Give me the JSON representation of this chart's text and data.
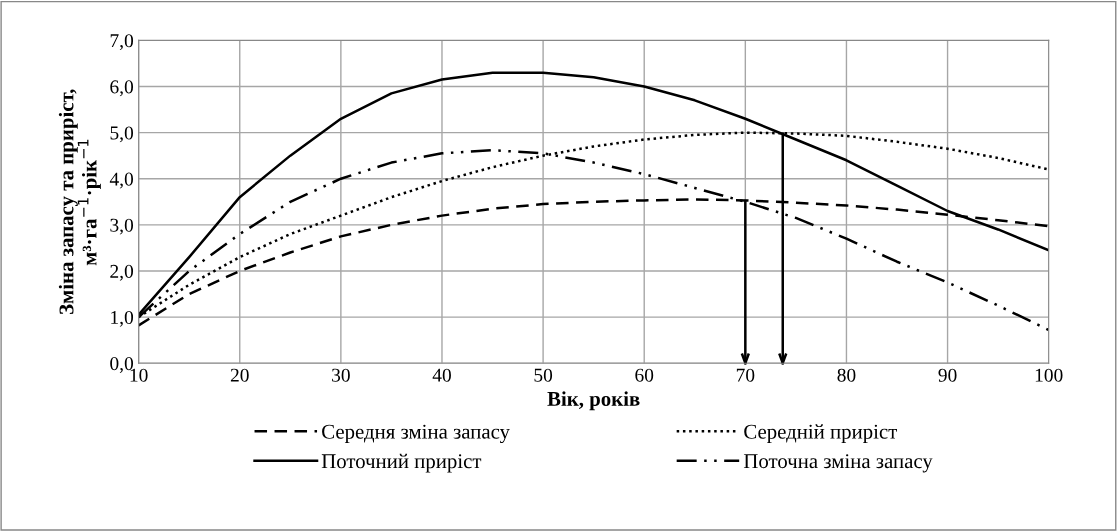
{
  "chart_data": {
    "type": "line",
    "xlabel": "Вік, років",
    "ylabel": "Зміна запасу та приріст,\nм³·га$^{−1}$·рік$^{−1}$",
    "x": [
      10,
      15,
      20,
      25,
      30,
      35,
      40,
      45,
      50,
      55,
      60,
      65,
      70,
      75,
      80,
      85,
      90,
      95,
      100
    ],
    "series": [
      {
        "name": "Середня зміна запасу",
        "color": "#000000",
        "line_style": "dashed",
        "values": [
          0.82,
          1.5,
          2.0,
          2.4,
          2.75,
          3.0,
          3.2,
          3.35,
          3.45,
          3.5,
          3.53,
          3.55,
          3.53,
          3.48,
          3.42,
          3.33,
          3.22,
          3.1,
          2.97
        ]
      },
      {
        "name": "Середній приріст",
        "color": "#000000",
        "line_style": "dotted",
        "values": [
          1.0,
          1.7,
          2.3,
          2.8,
          3.2,
          3.6,
          3.95,
          4.25,
          4.5,
          4.7,
          4.85,
          4.95,
          5.0,
          4.98,
          4.93,
          4.8,
          4.65,
          4.45,
          4.2
        ]
      },
      {
        "name": "Поточний приріст",
        "color": "#000000",
        "line_style": "solid",
        "values": [
          1.05,
          2.3,
          3.6,
          4.5,
          5.3,
          5.85,
          6.15,
          6.3,
          6.3,
          6.2,
          6.0,
          5.7,
          5.3,
          4.85,
          4.4,
          3.85,
          3.3,
          2.9,
          2.45
        ]
      },
      {
        "name": "Поточна зміна запасу",
        "color": "#000000",
        "line_style": "dashdotdot",
        "values": [
          1.0,
          2.0,
          2.8,
          3.5,
          4.0,
          4.35,
          4.55,
          4.62,
          4.55,
          4.35,
          4.1,
          3.8,
          3.5,
          3.15,
          2.7,
          2.2,
          1.75,
          1.25,
          0.72
        ]
      }
    ],
    "xlim": [
      10,
      100
    ],
    "xticks": [
      10,
      20,
      30,
      40,
      50,
      60,
      70,
      80,
      90,
      100
    ],
    "ylim": [
      0,
      7
    ],
    "yticks": [
      {
        "value": 0,
        "label": "0,0"
      },
      {
        "value": 1,
        "label": "1,0"
      },
      {
        "value": 2,
        "label": "2,0"
      },
      {
        "value": 3,
        "label": "3,0"
      },
      {
        "value": 4,
        "label": "4,0"
      },
      {
        "value": 5,
        "label": "5,0"
      },
      {
        "value": 6,
        "label": "6,0"
      },
      {
        "value": 7,
        "label": "7,0"
      }
    ],
    "ref_lines": [
      {
        "axis": "x",
        "value": 70,
        "line_style": "solid"
      },
      {
        "axis": "x",
        "value": 73.7,
        "line_style": "solid"
      }
    ],
    "grid": true,
    "legend": "bottom",
    "marker": "none"
  }
}
